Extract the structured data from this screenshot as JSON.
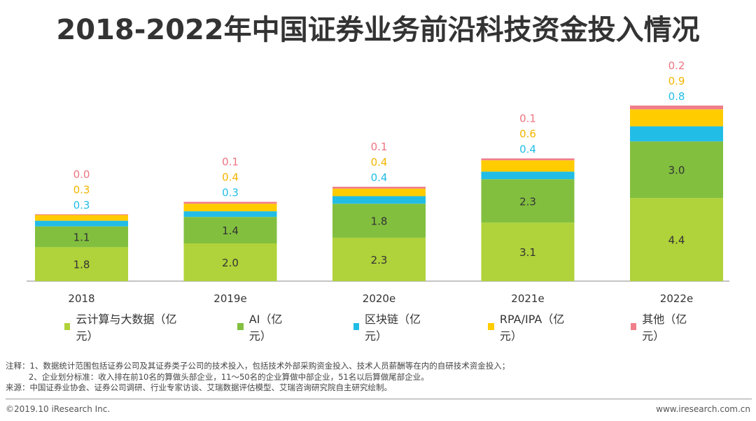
{
  "chart_data": {
    "type": "bar",
    "stacked": true,
    "title": "2018-2022年中国证券业务前沿科技资金投入情况",
    "categories": [
      "2018",
      "2019e",
      "2020e",
      "2021e",
      "2022e"
    ],
    "series": [
      {
        "name": "云计算与大数据（亿元）",
        "color": "#B0D23A",
        "values": [
          1.8,
          2.0,
          2.3,
          3.1,
          4.4
        ],
        "labels": [
          "1.8",
          "2.0",
          "2.3",
          "3.1",
          "4.4"
        ]
      },
      {
        "name": "AI（亿元）",
        "color": "#82BF3F",
        "values": [
          1.1,
          1.4,
          1.8,
          2.3,
          3.0
        ],
        "labels": [
          "1.1",
          "1.4",
          "1.8",
          "2.3",
          "3.0"
        ]
      },
      {
        "name": "区块链（亿元）",
        "color": "#22BDE6",
        "values": [
          0.3,
          0.3,
          0.4,
          0.4,
          0.8
        ],
        "labels": [
          "0.3",
          "0.3",
          "0.4",
          "0.4",
          "0.8"
        ]
      },
      {
        "name": "RPA/IPA（亿元）",
        "color": "#FFCC00",
        "values": [
          0.3,
          0.4,
          0.4,
          0.6,
          0.9
        ],
        "labels": [
          "0.3",
          "0.4",
          "0.4",
          "0.6",
          "0.9"
        ]
      },
      {
        "name": "其他（亿元）",
        "color": "#F07E8A",
        "values": [
          0.04,
          0.1,
          0.1,
          0.1,
          0.2
        ],
        "labels": [
          "0.0",
          "0.1",
          "0.1",
          "0.1",
          "0.2"
        ]
      }
    ],
    "label_colors": [
      "#333333",
      "#333333",
      "#22BDE6",
      "#F2B500",
      "#EB7480"
    ],
    "legend_position": "bottom"
  },
  "notes": {
    "line1": "注释：1、数据统计范围包括证券公司及其证券类子公司的技术投入，包括技术外部采购资金投入、技术人员薪酬等在内的自研技术资金投入；",
    "line2": "         2、企业划分标准：收入排在前10名的算做头部企业，11～50名的企业算做中部企业，51名以后算做尾部企业。",
    "line3": "来源：中国证券业协会、证券公司调研、行业专家访谈、艾瑞数据评估模型、艾瑞咨询研究院自主研究绘制。"
  },
  "footer": {
    "copyright": "©2019.10 iResearch Inc.",
    "website": "www.iresearch.com.cn"
  }
}
